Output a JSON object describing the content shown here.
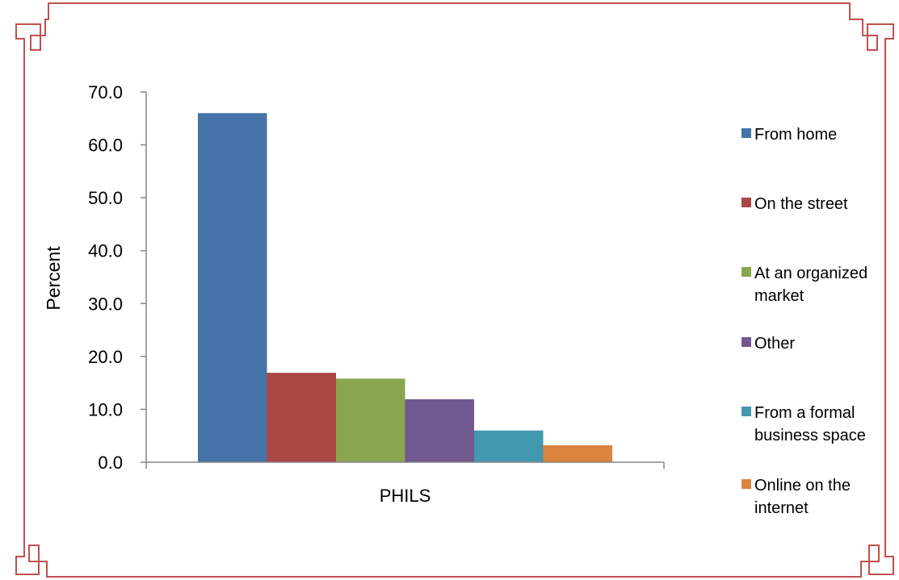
{
  "chart_data": {
    "type": "bar",
    "title": "",
    "xlabel": "",
    "ylabel": "Percent",
    "categories": [
      "PHILS"
    ],
    "ylim": [
      0,
      70
    ],
    "yticks": [
      "0.0",
      "10.0",
      "20.0",
      "30.0",
      "40.0",
      "50.0",
      "60.0",
      "70.0"
    ],
    "grid": false,
    "legend_position": "right",
    "series": [
      {
        "name": "From home",
        "values": [
          66.0
        ],
        "color": "#4572A7"
      },
      {
        "name": "On the street",
        "values": [
          16.9
        ],
        "color": "#AA4643"
      },
      {
        "name": "At an organized market",
        "values": [
          15.8
        ],
        "color": "#89A54E"
      },
      {
        "name": "Other",
        "values": [
          11.9
        ],
        "color": "#71588F"
      },
      {
        "name": "From a formal business space",
        "values": [
          6.0
        ],
        "color": "#4198AF"
      },
      {
        "name": "Online on the internet",
        "values": [
          3.2
        ],
        "color": "#DB843D"
      }
    ]
  },
  "colors": {
    "frame": "#C0504D"
  }
}
